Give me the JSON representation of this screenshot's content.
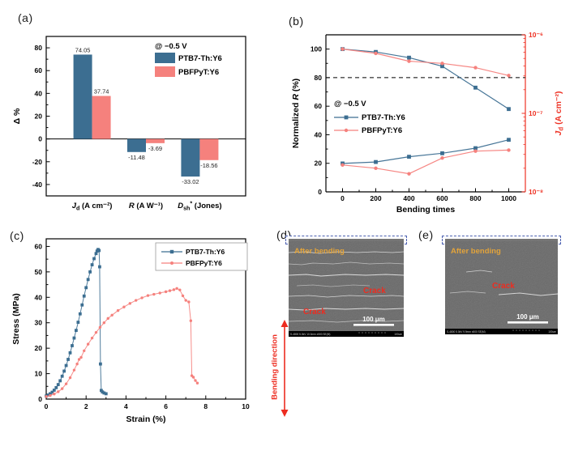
{
  "colors": {
    "blue": "#3c6e91",
    "pink": "#f5817d",
    "red": "#ed2c20",
    "axis_red": "#ee3224",
    "yellow": "#e2a33b",
    "panel_border": "#4a5fb0",
    "sem_gray": "#6f6f6f",
    "sem_gray_dark": "#696969"
  },
  "panels": {
    "a": {
      "label": "(a)"
    },
    "b": {
      "label": "(b)"
    },
    "c": {
      "label": "(c)"
    },
    "d": {
      "label": "(d)",
      "sample": "PTB7-Th:Y6",
      "after": "After bending",
      "cracks": [
        "Crack",
        "Crack"
      ],
      "scalebar": "100 μm",
      "info": "S-4800 5.0kV 10.3mm x500 SE(M)",
      "info_right": "100um",
      "bending_direction": "Bending direction"
    },
    "e": {
      "label": "(e)",
      "sample": "PBFPyT:Y6",
      "after": "After bending",
      "cracks": [
        "Crack"
      ],
      "scalebar": "100 μm",
      "info": "S-4800 5.0kV 9.9mm x500 SE(M)",
      "info_right": "100um"
    }
  },
  "chart_data": [
    {
      "panel": "a",
      "type": "bar",
      "legend_title": "@ −0.5 V",
      "legend_position": "top-right",
      "ylabel": "Δ %",
      "ylim": [
        -50,
        90
      ],
      "yticks": [
        -40,
        -20,
        0,
        20,
        40,
        60,
        80
      ],
      "categories": [
        {
          "parts": [
            {
              "t": "J",
              "i": true
            },
            {
              "t": "d",
              "sub": true
            },
            {
              "t": " (A cm⁻²)"
            }
          ]
        },
        {
          "parts": [
            {
              "t": "R",
              "i": true
            },
            {
              "t": " (A W⁻¹)"
            }
          ]
        },
        {
          "parts": [
            {
              "t": "D",
              "i": true
            },
            {
              "t": "sh",
              "sub": true
            },
            {
              "t": "*",
              "sup": true
            },
            {
              "t": " (Jones)"
            }
          ]
        }
      ],
      "series": [
        {
          "name": "PTB7-Th:Y6",
          "color": "blue",
          "values": [
            74.05,
            -11.48,
            -33.02
          ]
        },
        {
          "name": "PBFPyT:Y6",
          "color": "pink",
          "values": [
            37.74,
            -3.69,
            -18.56
          ]
        }
      ]
    },
    {
      "panel": "b",
      "type": "line-dual-axis",
      "legend_title": "@ −0.5 V",
      "xlabel": "Bending times",
      "xlim": [
        -100,
        1100
      ],
      "xticks": [
        0,
        200,
        400,
        600,
        800,
        1000
      ],
      "ylabel_left_parts": [
        {
          "t": "Normalized "
        },
        {
          "t": "R",
          "i": true
        },
        {
          "t": " (%)"
        }
      ],
      "ylim_left": [
        0,
        110
      ],
      "yticks_left": [
        0,
        20,
        40,
        60,
        80,
        100
      ],
      "ylabel_right_parts": [
        {
          "t": "J",
          "i": true
        },
        {
          "t": "d",
          "sub": true
        },
        {
          "t": " (A cm⁻²)"
        }
      ],
      "ylim_right_log10": [
        -8,
        -6
      ],
      "yticks_right_labels": [
        "10⁻⁸",
        "10⁻⁷",
        "10⁻⁶"
      ],
      "reference_line_left": 80,
      "x": [
        0,
        200,
        400,
        600,
        800,
        1000
      ],
      "series_left": [
        {
          "name": "PTB7-Th:Y6",
          "color": "blue",
          "marker": "square",
          "values": [
            100,
            98,
            94,
            88,
            73,
            58
          ]
        },
        {
          "name": "PBFPyT:Y6",
          "color": "pink",
          "marker": "circle",
          "values": [
            100,
            97,
            91.5,
            90,
            87,
            81.5
          ]
        }
      ],
      "series_right": [
        {
          "name": "PTB7-Th:Y6",
          "color": "blue",
          "marker": "square",
          "values_A_cm2": [
            2.3e-08,
            2.4e-08,
            2.8e-08,
            3.1e-08,
            3.6e-08,
            4.6e-08
          ]
        },
        {
          "name": "PBFPyT:Y6",
          "color": "pink",
          "marker": "circle",
          "values_A_cm2": [
            2.2e-08,
            2e-08,
            1.7e-08,
            2.7e-08,
            3.3e-08,
            3.4e-08
          ]
        }
      ]
    },
    {
      "panel": "c",
      "type": "line",
      "xlabel": "Strain (%)",
      "ylabel": "Stress (MPa)",
      "xlim": [
        0,
        10
      ],
      "xticks": [
        0,
        2,
        4,
        6,
        8,
        10
      ],
      "ylim": [
        0,
        63
      ],
      "yticks": [
        0,
        10,
        20,
        30,
        40,
        50,
        60
      ],
      "series": [
        {
          "name": "PTB7-Th:Y6",
          "color": "blue",
          "marker": "square",
          "points": [
            [
              0,
              1.2
            ],
            [
              0.1,
              1.6
            ],
            [
              0.2,
              2.1
            ],
            [
              0.3,
              2.7
            ],
            [
              0.4,
              3.5
            ],
            [
              0.5,
              4.5
            ],
            [
              0.6,
              5.7
            ],
            [
              0.7,
              7.2
            ],
            [
              0.8,
              9
            ],
            [
              0.9,
              11
            ],
            [
              1.0,
              13.2
            ],
            [
              1.1,
              15.6
            ],
            [
              1.2,
              18.2
            ],
            [
              1.3,
              21
            ],
            [
              1.4,
              24
            ],
            [
              1.5,
              27
            ],
            [
              1.6,
              30.2
            ],
            [
              1.7,
              33.5
            ],
            [
              1.8,
              37
            ],
            [
              1.9,
              40.5
            ],
            [
              2.0,
              43.8
            ],
            [
              2.1,
              47
            ],
            [
              2.2,
              50
            ],
            [
              2.3,
              52.8
            ],
            [
              2.4,
              55.2
            ],
            [
              2.5,
              57.2
            ],
            [
              2.55,
              58.2
            ],
            [
              2.6,
              58.8
            ],
            [
              2.65,
              58.4
            ],
            [
              2.68,
              52
            ],
            [
              2.72,
              13.8
            ],
            [
              2.76,
              3.4
            ],
            [
              2.82,
              2.8
            ],
            [
              2.9,
              2.4
            ],
            [
              3.0,
              2.1
            ]
          ]
        },
        {
          "name": "PBFPyT:Y6",
          "color": "pink",
          "marker": "circle",
          "points": [
            [
              0,
              1.0
            ],
            [
              0.2,
              1.4
            ],
            [
              0.4,
              2.0
            ],
            [
              0.6,
              2.9
            ],
            [
              0.8,
              4.1
            ],
            [
              1.0,
              6.0
            ],
            [
              1.2,
              8.4
            ],
            [
              1.4,
              11.4
            ],
            [
              1.55,
              13.8
            ],
            [
              1.65,
              15.6
            ],
            [
              1.75,
              16.4
            ],
            [
              1.9,
              19.0
            ],
            [
              2.1,
              21.6
            ],
            [
              2.3,
              24.0
            ],
            [
              2.5,
              26.2
            ],
            [
              2.7,
              28.2
            ],
            [
              2.9,
              30.0
            ],
            [
              3.1,
              31.7
            ],
            [
              3.3,
              33.0
            ],
            [
              3.6,
              34.8
            ],
            [
              3.9,
              36.2
            ],
            [
              4.2,
              37.6
            ],
            [
              4.5,
              38.8
            ],
            [
              4.8,
              39.8
            ],
            [
              5.1,
              40.7
            ],
            [
              5.4,
              41.2
            ],
            [
              5.7,
              41.7
            ],
            [
              6.0,
              42.2
            ],
            [
              6.2,
              42.6
            ],
            [
              6.4,
              43.0
            ],
            [
              6.55,
              43.5
            ],
            [
              6.7,
              42.9
            ],
            [
              6.85,
              40.6
            ],
            [
              7.0,
              38.8
            ],
            [
              7.15,
              38.2
            ],
            [
              7.25,
              30.8
            ],
            [
              7.3,
              9.2
            ],
            [
              7.38,
              8.6
            ],
            [
              7.48,
              7.3
            ],
            [
              7.58,
              6.3
            ]
          ]
        }
      ]
    }
  ]
}
